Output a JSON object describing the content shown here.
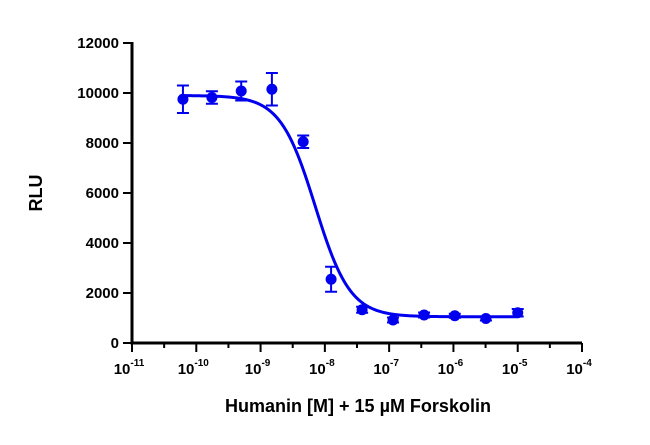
{
  "chart_data": {
    "type": "scatter",
    "title": "",
    "xlabel": "Humanin [M] + 15 µM  Forskolin",
    "ylabel": "RLU",
    "x_scale": "log10",
    "xlim": [
      1e-11,
      0.0001
    ],
    "ylim": [
      0,
      12000
    ],
    "x_ticks": [
      {
        "value": 1e-11,
        "base": "10",
        "exp": "-11"
      },
      {
        "value": 1e-10,
        "base": "10",
        "exp": "-10"
      },
      {
        "value": 1e-09,
        "base": "10",
        "exp": "-9"
      },
      {
        "value": 1e-08,
        "base": "10",
        "exp": "-8"
      },
      {
        "value": 1e-07,
        "base": "10",
        "exp": "-7"
      },
      {
        "value": 1e-06,
        "base": "10",
        "exp": "-6"
      },
      {
        "value": 1e-05,
        "base": "10",
        "exp": "-5"
      },
      {
        "value": 0.0001,
        "base": "10",
        "exp": "-4"
      }
    ],
    "y_ticks": [
      {
        "value": 0,
        "label": "0"
      },
      {
        "value": 2000,
        "label": "2000"
      },
      {
        "value": 4000,
        "label": "4000"
      },
      {
        "value": 6000,
        "label": "6000"
      },
      {
        "value": 8000,
        "label": "8000"
      },
      {
        "value": 10000,
        "label": "10000"
      },
      {
        "value": 12000,
        "label": "12000"
      }
    ],
    "grid": false,
    "legend": "none",
    "color": "#0000ee",
    "series": [
      {
        "points": [
          {
            "x": 6.2e-11,
            "y": 9750,
            "err": 550
          },
          {
            "x": 1.75e-10,
            "y": 9820,
            "err": 250
          },
          {
            "x": 5e-10,
            "y": 10080,
            "err": 380
          },
          {
            "x": 1.5e-09,
            "y": 10150,
            "err": 650
          },
          {
            "x": 4.6e-09,
            "y": 8050,
            "err": 250
          },
          {
            "x": 1.25e-08,
            "y": 2550,
            "err": 500
          },
          {
            "x": 3.8e-08,
            "y": 1330,
            "err": 120
          },
          {
            "x": 1.15e-07,
            "y": 920,
            "err": 100
          },
          {
            "x": 3.5e-07,
            "y": 1120,
            "err": 100
          },
          {
            "x": 1.05e-06,
            "y": 1090,
            "err": 80
          },
          {
            "x": 3.2e-06,
            "y": 980,
            "err": 80
          },
          {
            "x": 1e-05,
            "y": 1210,
            "err": 150
          }
        ],
        "fit": {
          "model": "four-parameter logistic",
          "top": 9900,
          "bottom": 1050,
          "log_ic50": -8.15,
          "hill_slope": -1.6,
          "x_range": [
            6.2e-11,
            1e-05
          ]
        }
      }
    ]
  }
}
